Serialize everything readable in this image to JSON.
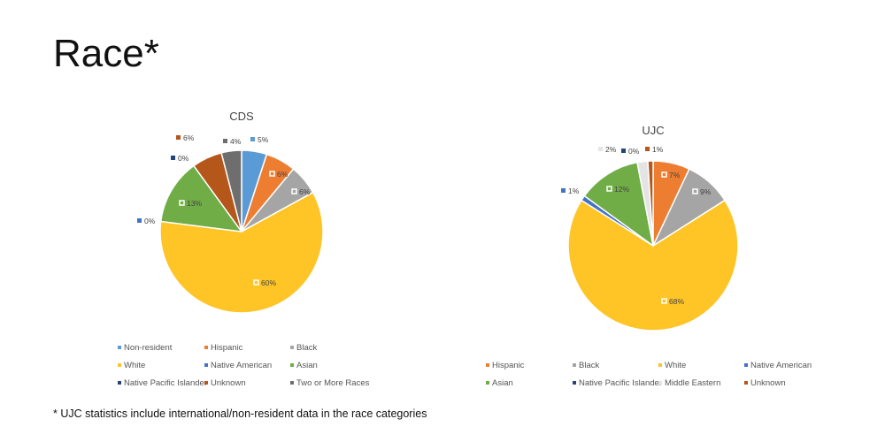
{
  "slide_title": "Race*",
  "footnote": "* UJC statistics include international/non-resident data in the race categories",
  "chart_data": [
    {
      "type": "pie",
      "title": "CDS",
      "legend_position": "bottom",
      "categories": [
        "Non-resident",
        "Hispanic",
        "Black",
        "White",
        "Native American",
        "Asian",
        "Native Pacific Islander",
        "Unknown",
        "Two or More Races"
      ],
      "values": [
        5,
        6,
        6,
        60,
        0,
        13,
        0,
        6,
        4
      ],
      "labels": [
        "5%",
        "6%",
        "6%",
        "60%",
        "0%",
        "13%",
        "0%",
        "6%",
        "4%"
      ],
      "colors": [
        "#5B9BD5",
        "#ED7D31",
        "#A5A5A5",
        "#FFC425",
        "#4472C4",
        "#70AD47",
        "#264478",
        "#B5561A",
        "#6E6E6E"
      ]
    },
    {
      "type": "pie",
      "title": "UJC",
      "legend_position": "bottom",
      "categories": [
        "Hispanic",
        "Black",
        "White",
        "Native American",
        "Asian",
        "Native Pacific Islander",
        "Middle Eastern",
        "Unknown"
      ],
      "values": [
        7,
        9,
        68,
        1,
        12,
        0,
        2,
        1
      ],
      "labels": [
        "7%",
        "9%",
        "68%",
        "1%",
        "12%",
        "0%",
        "2%",
        "1%"
      ],
      "colors": [
        "#ED7D31",
        "#A5A5A5",
        "#FFC425",
        "#4472C4",
        "#70AD47",
        "#264478",
        "#E4E4E4",
        "#B5561A"
      ]
    }
  ]
}
